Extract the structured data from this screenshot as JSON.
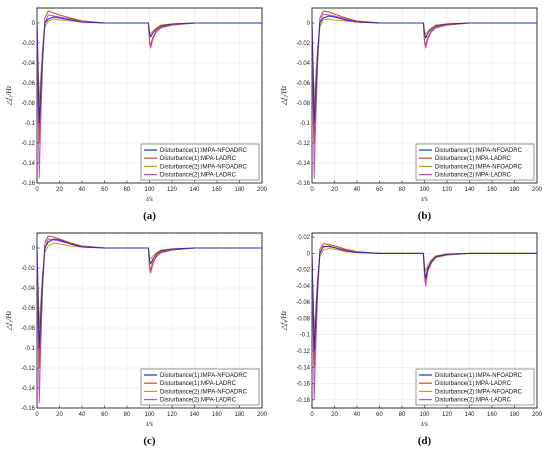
{
  "colors": {
    "s1": "#2b2bb8",
    "s2": "#c8501e",
    "s3": "#b8a020",
    "s4": "#cc44dd"
  },
  "legend_labels": [
    "Disturbance(1):IMPA-NFOADRC",
    "Disturbance(1):MPA-LADRC",
    "Disturbance(2):IMPA-NFOADRC",
    "Disturbance(2):MPA-LADRC"
  ],
  "chart_data": [
    {
      "type": "line",
      "panel_label": "(a)",
      "xlabel": "t/s",
      "ylabel": "△f₁/Hz",
      "xlim": [
        0,
        200
      ],
      "ylim": [
        -0.16,
        0.015
      ],
      "xticks": [
        0,
        20,
        40,
        60,
        80,
        100,
        120,
        140,
        160,
        180,
        200
      ],
      "yticks": [
        0,
        -0.02,
        -0.04,
        -0.06,
        -0.08,
        -0.1,
        -0.12,
        -0.14,
        -0.16
      ],
      "xtick_labels": [
        "0",
        "20",
        "40",
        "60",
        "80",
        "100",
        "120",
        "140",
        "160",
        "180",
        "200"
      ],
      "ytick_labels": [
        "0",
        "-0.02",
        "-0.04",
        "-0.06",
        "-0.08",
        "-0.1",
        "-0.12",
        "-0.14",
        "-0.16"
      ],
      "legend_position": "lower-right",
      "series": [
        {
          "name": "Disturbance(1):IMPA-NFOADRC",
          "x": [
            0,
            1,
            2,
            3,
            5,
            7,
            10,
            15,
            20,
            30,
            40,
            60,
            80,
            99,
            100,
            101,
            103,
            106,
            110,
            120,
            140,
            160,
            200
          ],
          "y": [
            0,
            -0.05,
            -0.1,
            -0.075,
            -0.03,
            0.0,
            0.004,
            0.006,
            0.005,
            0.003,
            0.001,
            0,
            0,
            0,
            -0.01,
            -0.014,
            -0.01,
            -0.006,
            -0.003,
            -0.001,
            0,
            0,
            0
          ]
        },
        {
          "name": "Disturbance(1):MPA-LADRC",
          "x": [
            0,
            1,
            2,
            3,
            5,
            7,
            10,
            15,
            20,
            30,
            40,
            60,
            80,
            99,
            100,
            101,
            103,
            106,
            110,
            120,
            140,
            160,
            200
          ],
          "y": [
            0,
            -0.06,
            -0.12,
            -0.09,
            -0.035,
            0.005,
            0.012,
            0.01,
            0.008,
            0.005,
            0.002,
            0,
            0,
            0,
            -0.018,
            -0.022,
            -0.014,
            -0.008,
            -0.004,
            -0.002,
            0,
            0,
            0
          ]
        },
        {
          "name": "Disturbance(2):IMPA-NFOADRC",
          "x": [
            0,
            1,
            2,
            3,
            5,
            7,
            10,
            15,
            20,
            30,
            40,
            60,
            80,
            99,
            100,
            101,
            103,
            106,
            110,
            120,
            140,
            160,
            200
          ],
          "y": [
            0,
            -0.04,
            -0.08,
            -0.06,
            -0.025,
            -0.004,
            0.002,
            0.004,
            0.003,
            0.002,
            0.001,
            0,
            0,
            0,
            -0.008,
            -0.011,
            -0.008,
            -0.005,
            -0.002,
            -0.001,
            0,
            0,
            0
          ]
        },
        {
          "name": "Disturbance(2):MPA-LADRC",
          "x": [
            0,
            1,
            2,
            3,
            5,
            7,
            10,
            15,
            20,
            30,
            40,
            60,
            80,
            99,
            100,
            101,
            103,
            106,
            110,
            120,
            140,
            160,
            200
          ],
          "y": [
            0,
            -0.08,
            -0.155,
            -0.11,
            -0.04,
            0.0,
            0.008,
            0.007,
            0.006,
            0.004,
            0.002,
            0,
            0,
            0,
            -0.02,
            -0.025,
            -0.016,
            -0.009,
            -0.005,
            -0.002,
            0,
            0,
            0
          ]
        }
      ]
    },
    {
      "type": "line",
      "panel_label": "(b)",
      "xlabel": "t/s",
      "ylabel": "△f₂/Hz",
      "xlim": [
        0,
        200
      ],
      "ylim": [
        -0.16,
        0.015
      ],
      "xticks": [
        0,
        20,
        40,
        60,
        80,
        100,
        120,
        140,
        160,
        180,
        200
      ],
      "yticks": [
        0,
        -0.02,
        -0.04,
        -0.06,
        -0.08,
        -0.1,
        -0.12,
        -0.14,
        -0.16
      ],
      "xtick_labels": [
        "0",
        "20",
        "40",
        "60",
        "80",
        "100",
        "120",
        "140",
        "160",
        "180",
        "200"
      ],
      "ytick_labels": [
        "0",
        "-0.02",
        "-0.04",
        "-0.06",
        "-0.08",
        "-0.1",
        "-0.12",
        "-0.14",
        "-0.16"
      ],
      "legend_position": "lower-right",
      "series": [
        {
          "name": "Disturbance(1):IMPA-NFOADRC",
          "x": [
            0,
            1,
            2,
            3,
            5,
            7,
            10,
            15,
            20,
            30,
            40,
            60,
            80,
            99,
            100,
            101,
            103,
            106,
            110,
            120,
            140,
            160,
            200
          ],
          "y": [
            0,
            -0.05,
            -0.1,
            -0.075,
            -0.03,
            0.0,
            0.005,
            0.007,
            0.006,
            0.003,
            0.001,
            0,
            0,
            0,
            -0.01,
            -0.015,
            -0.01,
            -0.006,
            -0.003,
            -0.001,
            0,
            0,
            0
          ]
        },
        {
          "name": "Disturbance(1):MPA-LADRC",
          "x": [
            0,
            1,
            2,
            3,
            5,
            7,
            10,
            15,
            20,
            30,
            40,
            60,
            80,
            99,
            100,
            101,
            103,
            106,
            110,
            120,
            140,
            160,
            200
          ],
          "y": [
            0,
            -0.06,
            -0.12,
            -0.09,
            -0.035,
            0.005,
            0.012,
            0.011,
            0.009,
            0.005,
            0.002,
            0,
            0,
            0,
            -0.018,
            -0.022,
            -0.014,
            -0.008,
            -0.004,
            -0.002,
            0,
            0,
            0
          ]
        },
        {
          "name": "Disturbance(2):IMPA-NFOADRC",
          "x": [
            0,
            1,
            2,
            3,
            5,
            7,
            10,
            15,
            20,
            30,
            40,
            60,
            80,
            99,
            100,
            101,
            103,
            106,
            110,
            120,
            140,
            160,
            200
          ],
          "y": [
            0,
            -0.04,
            -0.08,
            -0.06,
            -0.025,
            -0.004,
            0.003,
            0.004,
            0.003,
            0.002,
            0.001,
            0,
            0,
            0,
            -0.008,
            -0.011,
            -0.008,
            -0.005,
            -0.002,
            -0.001,
            0,
            0,
            0
          ]
        },
        {
          "name": "Disturbance(2):MPA-LADRC",
          "x": [
            0,
            1,
            2,
            3,
            5,
            7,
            10,
            15,
            20,
            30,
            40,
            60,
            80,
            99,
            100,
            101,
            103,
            106,
            110,
            120,
            140,
            160,
            200
          ],
          "y": [
            0,
            -0.08,
            -0.155,
            -0.11,
            -0.04,
            0.0,
            0.009,
            0.008,
            0.007,
            0.004,
            0.002,
            0,
            0,
            0,
            -0.02,
            -0.025,
            -0.016,
            -0.009,
            -0.005,
            -0.002,
            0,
            0,
            0
          ]
        }
      ]
    },
    {
      "type": "line",
      "panel_label": "(c)",
      "xlabel": "t/s",
      "ylabel": "△f₃/Hz",
      "xlim": [
        0,
        200
      ],
      "ylim": [
        -0.16,
        0.015
      ],
      "xticks": [
        0,
        20,
        40,
        60,
        80,
        100,
        120,
        140,
        160,
        180,
        200
      ],
      "yticks": [
        0,
        -0.02,
        -0.04,
        -0.06,
        -0.08,
        -0.1,
        -0.12,
        -0.14,
        -0.16
      ],
      "xtick_labels": [
        "0",
        "20",
        "40",
        "60",
        "80",
        "100",
        "120",
        "140",
        "160",
        "180",
        "200"
      ],
      "ytick_labels": [
        "0",
        "-0.02",
        "-0.04",
        "-0.06",
        "-0.08",
        "-0.1",
        "-0.12",
        "-0.14",
        "-0.16"
      ],
      "legend_position": "lower-right",
      "series": [
        {
          "name": "Disturbance(1):IMPA-NFOADRC",
          "x": [
            0,
            1,
            2,
            3,
            5,
            7,
            10,
            15,
            20,
            30,
            40,
            60,
            80,
            99,
            100,
            101,
            103,
            106,
            110,
            120,
            140,
            160,
            200
          ],
          "y": [
            0,
            -0.05,
            -0.1,
            -0.075,
            -0.03,
            0.0,
            0.006,
            0.009,
            0.008,
            0.004,
            0.001,
            0,
            0,
            0,
            -0.012,
            -0.016,
            -0.011,
            -0.006,
            -0.003,
            -0.001,
            0,
            0,
            0
          ]
        },
        {
          "name": "Disturbance(1):MPA-LADRC",
          "x": [
            0,
            1,
            2,
            3,
            5,
            7,
            10,
            15,
            20,
            30,
            40,
            60,
            80,
            99,
            100,
            101,
            103,
            106,
            110,
            120,
            140,
            160,
            200
          ],
          "y": [
            0,
            -0.06,
            -0.12,
            -0.09,
            -0.035,
            0.005,
            0.012,
            0.011,
            0.009,
            0.005,
            0.002,
            0,
            0,
            0,
            -0.018,
            -0.022,
            -0.014,
            -0.008,
            -0.004,
            -0.002,
            0,
            0,
            0
          ]
        },
        {
          "name": "Disturbance(2):IMPA-NFOADRC",
          "x": [
            0,
            1,
            2,
            3,
            5,
            7,
            10,
            15,
            20,
            30,
            40,
            60,
            80,
            99,
            100,
            101,
            103,
            106,
            110,
            120,
            140,
            160,
            200
          ],
          "y": [
            0,
            -0.04,
            -0.08,
            -0.06,
            -0.025,
            -0.004,
            0.002,
            0.005,
            0.004,
            0.002,
            0.001,
            0,
            0,
            0,
            -0.008,
            -0.011,
            -0.008,
            -0.005,
            -0.002,
            -0.001,
            0,
            0,
            0
          ]
        },
        {
          "name": "Disturbance(2):MPA-LADRC",
          "x": [
            0,
            1,
            2,
            3,
            5,
            7,
            10,
            15,
            20,
            30,
            40,
            60,
            80,
            99,
            100,
            101,
            103,
            106,
            110,
            120,
            140,
            160,
            200
          ],
          "y": [
            0,
            -0.08,
            -0.155,
            -0.11,
            -0.04,
            0.0,
            0.009,
            0.008,
            0.007,
            0.004,
            0.002,
            0,
            0,
            0,
            -0.02,
            -0.025,
            -0.016,
            -0.009,
            -0.005,
            -0.002,
            0,
            0,
            0
          ]
        }
      ]
    },
    {
      "type": "line",
      "panel_label": "(d)",
      "xlabel": "t/s",
      "ylabel": "△f₄/Hz",
      "xlim": [
        0,
        200
      ],
      "ylim": [
        -0.19,
        0.025
      ],
      "xticks": [
        0,
        20,
        40,
        60,
        80,
        100,
        120,
        140,
        160,
        180,
        200
      ],
      "yticks": [
        0.02,
        0,
        -0.02,
        -0.04,
        -0.06,
        -0.08,
        -0.1,
        -0.12,
        -0.14,
        -0.16,
        -0.18
      ],
      "xtick_labels": [
        "0",
        "20",
        "40",
        "60",
        "80",
        "100",
        "120",
        "140",
        "160",
        "180",
        "200"
      ],
      "ytick_labels": [
        "0.02",
        "0",
        "-0.02",
        "-0.04",
        "-0.06",
        "-0.08",
        "-0.1",
        "-0.12",
        "-0.14",
        "-0.16",
        "-0.18"
      ],
      "legend_position": "lower-right",
      "series": [
        {
          "name": "Disturbance(1):IMPA-NFOADRC",
          "x": [
            0,
            1,
            2,
            3,
            5,
            7,
            10,
            15,
            20,
            30,
            40,
            60,
            80,
            99,
            100,
            101,
            103,
            106,
            110,
            120,
            140,
            160,
            200
          ],
          "y": [
            0,
            -0.06,
            -0.12,
            -0.09,
            -0.035,
            0.0,
            0.008,
            0.009,
            0.007,
            0.003,
            0.001,
            0,
            0,
            0,
            -0.02,
            -0.03,
            -0.018,
            -0.01,
            -0.004,
            -0.001,
            0,
            0,
            0
          ]
        },
        {
          "name": "Disturbance(1):MPA-LADRC",
          "x": [
            0,
            1,
            2,
            3,
            5,
            7,
            10,
            15,
            20,
            30,
            40,
            60,
            80,
            99,
            100,
            101,
            103,
            106,
            110,
            120,
            140,
            160,
            200
          ],
          "y": [
            0,
            -0.07,
            -0.14,
            -0.1,
            -0.04,
            0.005,
            0.012,
            0.011,
            0.009,
            0.005,
            0.002,
            0,
            0,
            0,
            -0.025,
            -0.035,
            -0.02,
            -0.012,
            -0.005,
            -0.002,
            0,
            0,
            0
          ]
        },
        {
          "name": "Disturbance(2):IMPA-NFOADRC",
          "x": [
            0,
            1,
            2,
            3,
            5,
            7,
            10,
            15,
            20,
            30,
            40,
            60,
            80,
            99,
            100,
            101,
            103,
            106,
            110,
            120,
            140,
            160,
            200
          ],
          "y": [
            0,
            -0.05,
            -0.1,
            -0.075,
            -0.03,
            -0.003,
            0.004,
            0.006,
            0.005,
            0.002,
            0.001,
            0,
            0,
            0,
            -0.015,
            -0.022,
            -0.014,
            -0.008,
            -0.003,
            -0.001,
            0,
            0,
            0
          ]
        },
        {
          "name": "Disturbance(2):MPA-LADRC",
          "x": [
            0,
            1,
            2,
            3,
            5,
            7,
            10,
            15,
            20,
            30,
            40,
            60,
            80,
            99,
            100,
            101,
            103,
            106,
            110,
            120,
            140,
            160,
            200
          ],
          "y": [
            0,
            -0.09,
            -0.18,
            -0.13,
            -0.05,
            0.0,
            0.009,
            0.008,
            0.007,
            0.004,
            0.002,
            0,
            0,
            0,
            -0.028,
            -0.04,
            -0.022,
            -0.012,
            -0.005,
            -0.002,
            0,
            0,
            0
          ]
        }
      ]
    }
  ]
}
